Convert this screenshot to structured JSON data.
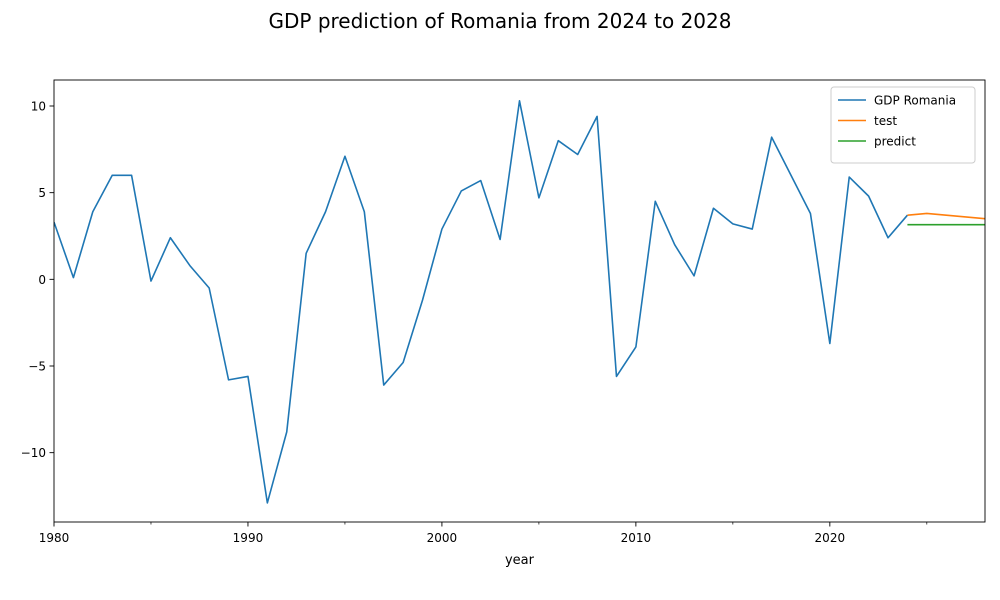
{
  "chart_data": {
    "type": "line",
    "title": "GDP prediction of Romania from 2024 to 2028",
    "xlabel": "year",
    "ylabel": "",
    "xlim": [
      1980,
      2028
    ],
    "ylim": [
      -14,
      11.5
    ],
    "x_ticks": [
      {
        "value": 1980,
        "label": "1980"
      },
      {
        "value": 1990,
        "label": "1990"
      },
      {
        "value": 2000,
        "label": "2000"
      },
      {
        "value": 2010,
        "label": "2010"
      },
      {
        "value": 2020,
        "label": "2020"
      }
    ],
    "x_minor_ticks": [
      1985,
      1995,
      2005,
      2015,
      2025
    ],
    "y_ticks": [
      {
        "value": 10,
        "label": "10"
      },
      {
        "value": 5,
        "label": "5"
      },
      {
        "value": 0,
        "label": "0"
      },
      {
        "value": -5,
        "label": "−5"
      },
      {
        "value": -10,
        "label": "−10"
      }
    ],
    "grid": false,
    "legend_position": "top-right",
    "series": [
      {
        "name": "GDP Romania",
        "color": "#1f77b4",
        "x": [
          1980,
          1981,
          1982,
          1983,
          1984,
          1985,
          1986,
          1987,
          1988,
          1989,
          1990,
          1991,
          1992,
          1993,
          1994,
          1995,
          1996,
          1997,
          1998,
          1999,
          2000,
          2001,
          2002,
          2003,
          2004,
          2005,
          2006,
          2007,
          2008,
          2009,
          2010,
          2011,
          2012,
          2013,
          2014,
          2015,
          2016,
          2017,
          2018,
          2019,
          2020,
          2021,
          2022,
          2023,
          2024
        ],
        "values": [
          3.3,
          0.1,
          3.9,
          6.0,
          6.0,
          -0.1,
          2.4,
          0.8,
          -0.5,
          -5.8,
          -5.6,
          -12.9,
          -8.8,
          1.5,
          3.9,
          7.1,
          3.9,
          -6.1,
          -4.8,
          -1.2,
          2.9,
          5.1,
          5.7,
          2.3,
          10.3,
          4.7,
          8.0,
          7.2,
          9.4,
          -5.6,
          -3.9,
          4.5,
          2.0,
          0.2,
          4.1,
          3.2,
          2.9,
          8.2,
          6.0,
          3.8,
          -3.7,
          5.9,
          4.8,
          2.4,
          3.7
        ]
      },
      {
        "name": "test",
        "color": "#ff7f0e",
        "x": [
          2024,
          2025,
          2026,
          2027,
          2028
        ],
        "values": [
          3.7,
          3.8,
          3.7,
          3.6,
          3.5
        ]
      },
      {
        "name": "predict",
        "color": "#2ca02c",
        "x": [
          2024,
          2025,
          2026,
          2027,
          2028
        ],
        "values": [
          3.15,
          3.15,
          3.15,
          3.15,
          3.15
        ]
      }
    ]
  }
}
